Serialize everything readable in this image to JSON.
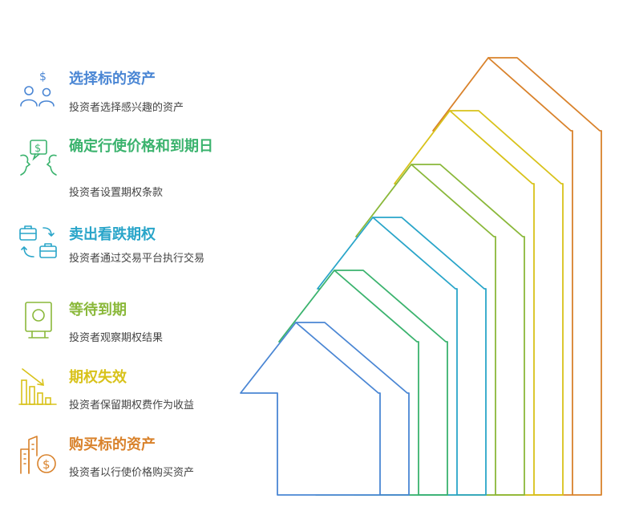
{
  "steps": [
    {
      "title": "选择标的资产",
      "desc": "投资者选择感兴趣的资产",
      "color": "#4a86d4",
      "icon": "investors-dollar-icon"
    },
    {
      "title": "确定行使价格和到期日",
      "desc": "投资者设置期权条款",
      "color": "#3bb36e",
      "icon": "negotiation-dollar-icon"
    },
    {
      "title": "卖出看跌期权",
      "desc": "投资者通过交易平台执行交易",
      "color": "#29a5c9",
      "icon": "briefcase-exchange-icon"
    },
    {
      "title": "等待到期",
      "desc": "投资者观察期权结果",
      "color": "#8ab83a",
      "icon": "safe-box-icon"
    },
    {
      "title": "期权失效",
      "desc": "投资者保留期权费作为收益",
      "color": "#d8c21a",
      "icon": "declining-bar-chart-icon"
    },
    {
      "title": "购买标的资产",
      "desc": "投资者以行使价格购买资产",
      "color": "#d9822b",
      "icon": "building-dollar-icon"
    }
  ]
}
